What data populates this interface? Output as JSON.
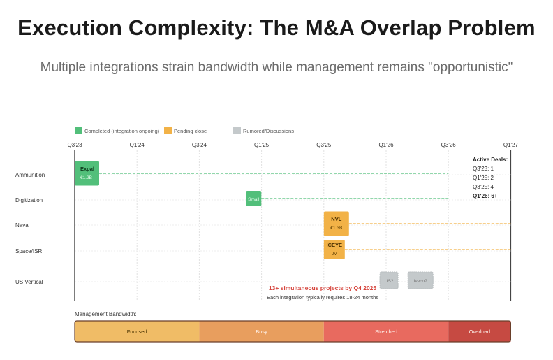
{
  "title": "Execution Complexity: The M&A Overlap Problem",
  "subtitle": "Multiple integrations strain bandwidth while management remains \"opportunistic\"",
  "chart_data": {
    "type": "timeline",
    "x_axis": {
      "ticks": [
        "Q3'23",
        "Q1'24",
        "Q3'24",
        "Q1'25",
        "Q3'25",
        "Q1'26",
        "Q3'26",
        "Q1'27"
      ],
      "range": [
        "Q3'23",
        "Q1'27"
      ]
    },
    "legend": [
      {
        "label": "Completed (integration ongoing)",
        "color": "#52bf7a",
        "status": "completed"
      },
      {
        "label": "Pending close",
        "color": "#f2b247",
        "status": "pending"
      },
      {
        "label": "Rumored/Discussions",
        "color": "#c4c9cb",
        "status": "rumored"
      }
    ],
    "rows": [
      "Ammunition",
      "Digitization",
      "Naval",
      "Space/ISR",
      "US Vertical"
    ],
    "deals": [
      {
        "row": "Ammunition",
        "name": "Expal",
        "value": "€1.2B",
        "status": "completed",
        "start_quarter": 0,
        "integration_end_quarter": 6
      },
      {
        "row": "Digitization",
        "name": "Small",
        "value": "",
        "status": "completed",
        "start_quarter": 2.75,
        "integration_end_quarter": 6
      },
      {
        "row": "Naval",
        "name": "NVL",
        "value": "€1.3B",
        "status": "pending",
        "start_quarter": 4,
        "integration_end_quarter": 7
      },
      {
        "row": "Space/ISR",
        "name": "ICEYE",
        "value": "JV",
        "status": "pending",
        "start_quarter": 4,
        "integration_end_quarter": 7
      },
      {
        "row": "US Vertical",
        "name": "US?",
        "value": "",
        "status": "rumored",
        "start_quarter": 4.9,
        "integration_end_quarter": null
      },
      {
        "row": "US Vertical",
        "name": "Iveco?",
        "value": "",
        "status": "rumored",
        "start_quarter": 5.35,
        "integration_end_quarter": null
      }
    ],
    "active_deals": {
      "title": "Active Deals:",
      "items": [
        {
          "label": "Q3'23: 1",
          "quarter": "Q3'23",
          "count": 1,
          "bold": false
        },
        {
          "label": "Q1'25: 2",
          "quarter": "Q1'25",
          "count": 2,
          "bold": false
        },
        {
          "label": "Q3'25: 4",
          "quarter": "Q3'25",
          "count": 4,
          "bold": false
        },
        {
          "label": "Q1'26: 6+",
          "quarter": "Q1'26",
          "count": 6,
          "bold": true
        }
      ]
    },
    "annotation": {
      "main": "13+ simultaneous projects by Q4 2025",
      "sub": "Each integration typically requires 18-24 months"
    },
    "bandwidth": {
      "label": "Management Bandwidth:",
      "segments": [
        {
          "label": "Focused",
          "color": "#f0bc66",
          "start_quarter": 0,
          "end_quarter": 2
        },
        {
          "label": "Busy",
          "color": "#e89e5e",
          "start_quarter": 2,
          "end_quarter": 4
        },
        {
          "label": "Stretched",
          "color": "#e86a5f",
          "start_quarter": 4,
          "end_quarter": 6
        },
        {
          "label": "Overload",
          "color": "#c64a42",
          "start_quarter": 6,
          "end_quarter": 7
        }
      ]
    }
  }
}
